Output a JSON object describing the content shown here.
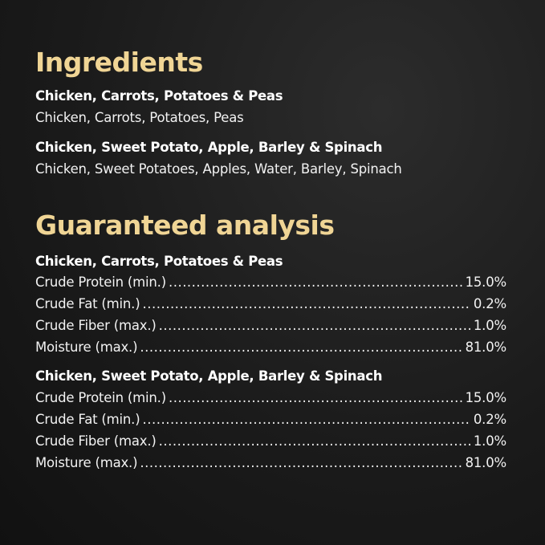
{
  "ingredients": {
    "title": "Ingredients",
    "recipes": [
      {
        "name": "Chicken, Carrots, Potatoes & Peas",
        "list": "Chicken, Carrots, Potatoes, Peas"
      },
      {
        "name": "Chicken, Sweet Potato, Apple, Barley & Spinach",
        "list": "Chicken, Sweet Potatoes, Apples, Water, Barley, Spinach"
      }
    ]
  },
  "analysis": {
    "title": "Guaranteed analysis",
    "recipes": [
      {
        "name": "Chicken, Carrots, Potatoes & Peas",
        "rows": [
          {
            "label": "Crude Protein (min.)",
            "value": "15.0%"
          },
          {
            "label": "Crude Fat (min.)",
            "value": "0.2%"
          },
          {
            "label": "Crude Fiber (max.)",
            "value": "1.0%"
          },
          {
            "label": "Moisture (max.)",
            "value": "81.0%"
          }
        ]
      },
      {
        "name": "Chicken, Sweet Potato, Apple, Barley & Spinach",
        "rows": [
          {
            "label": "Crude Protein (min.)",
            "value": "15.0%"
          },
          {
            "label": "Crude Fat (min.)",
            "value": "0.2%"
          },
          {
            "label": "Crude Fiber (max.)",
            "value": "1.0%"
          },
          {
            "label": "Moisture (max.)",
            "value": "81.0%"
          }
        ]
      }
    ]
  },
  "colors": {
    "accent": "#f0d595",
    "background": "#1b1b1b",
    "text": "#ffffff"
  }
}
